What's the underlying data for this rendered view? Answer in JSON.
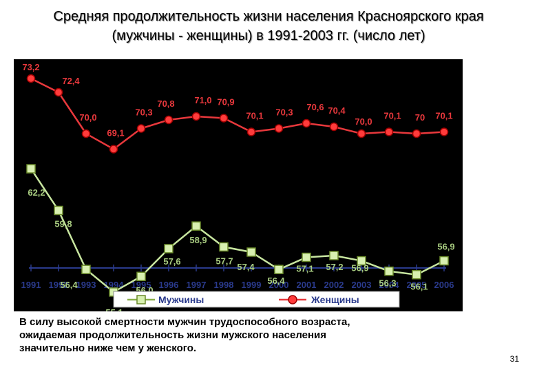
{
  "slide": {
    "title_line1": "Средняя продолжительность жизни населения Красноярского края",
    "title_line2": "(мужчины - женщины) в 1991-2003 гг. (число лет)",
    "caption_line1": "В силу высокой смертности мужчин трудоспособного возраста,",
    "caption_line2": "ожидаемая продолжительность жизни мужского населения",
    "caption_line3": "значительно ниже чем у женского.",
    "page_number": "31"
  },
  "chart_data": {
    "type": "line",
    "title": "",
    "xlabel": "",
    "ylabel": "",
    "x": [
      "1991",
      "1992",
      "1993",
      "1994",
      "1995",
      "1996",
      "1997",
      "1998",
      "1999",
      "2000",
      "2001",
      "2002",
      "2003",
      "2004",
      "2005",
      "2006"
    ],
    "series": [
      {
        "name": "Мужчины",
        "color": "#c8e6a0",
        "marker": "square",
        "values": [
          62.2,
          59.8,
          56.4,
          55.1,
          56.0,
          57.6,
          58.9,
          57.7,
          57.4,
          56.4,
          57.1,
          57.2,
          56.9,
          56.3,
          56.1,
          56.9
        ],
        "labels": [
          "62,2",
          "59,8",
          "56,4",
          "55,1",
          "56,0",
          "57,6",
          "58,9",
          "57,7",
          "57,4",
          "56,4",
          "57,1",
          "57,2",
          "56,9",
          "56,3",
          "56,1",
          "56,9"
        ]
      },
      {
        "name": "Женщины",
        "color": "#e8383c",
        "marker": "circle",
        "values": [
          73.2,
          72.4,
          70.0,
          69.1,
          70.3,
          70.8,
          71.0,
          70.9,
          70.1,
          70.3,
          70.6,
          70.4,
          70.0,
          70.1,
          70.0,
          70.1
        ],
        "labels": [
          "73,2",
          "72,4",
          "70,0",
          "69,1",
          "70,3",
          "70,8",
          "71,0",
          "70,9",
          "70,1",
          "70,3",
          "70,6",
          "70,4",
          "70,0",
          "70,1",
          "70",
          "70,1"
        ]
      }
    ],
    "legend_position": "bottom",
    "grid": false
  }
}
